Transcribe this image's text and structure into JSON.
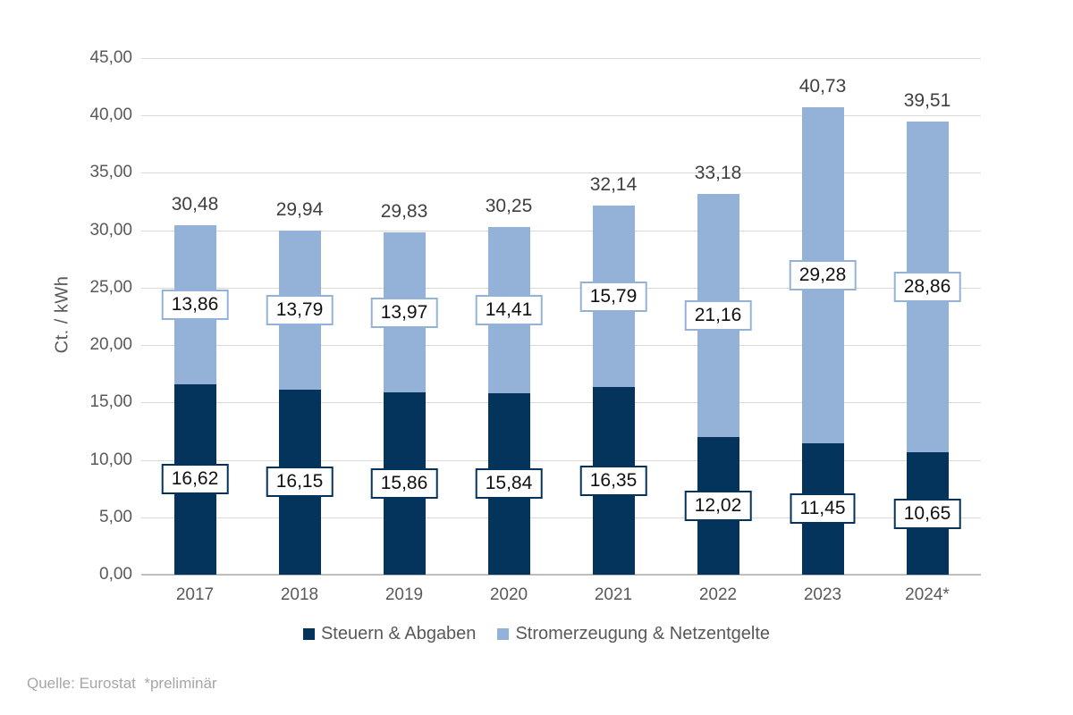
{
  "chart_data": {
    "type": "bar",
    "stacked": true,
    "title": "",
    "ylabel": "Ct. / kWh",
    "ylim": [
      0,
      45
    ],
    "yticks": [
      0,
      5,
      10,
      15,
      20,
      25,
      30,
      35,
      40,
      45
    ],
    "ytick_labels": [
      "0,00",
      "5,00",
      "10,00",
      "15,00",
      "20,00",
      "25,00",
      "30,00",
      "35,00",
      "40,00",
      "45,00"
    ],
    "grid": true,
    "legend_position": "bottom",
    "categories": [
      "2017",
      "2018",
      "2019",
      "2020",
      "2021",
      "2022",
      "2023",
      "2024*"
    ],
    "series": [
      {
        "name": "Steuern & Abgaben",
        "color": "#04335B",
        "values": [
          16.62,
          16.15,
          15.86,
          15.84,
          16.35,
          12.02,
          11.45,
          10.65
        ],
        "labels": [
          "16,62",
          "16,15",
          "15,86",
          "15,84",
          "16,35",
          "12,02",
          "11,45",
          "10,65"
        ]
      },
      {
        "name": "Stromerzeugung & Netzentgelte",
        "color": "#94B2D8",
        "values": [
          13.86,
          13.79,
          13.97,
          14.41,
          15.79,
          21.16,
          29.28,
          28.86
        ],
        "labels": [
          "13,86",
          "13,79",
          "13,97",
          "14,41",
          "15,79",
          "21,16",
          "29,28",
          "28,86"
        ]
      }
    ],
    "totals": [
      30.48,
      29.94,
      29.83,
      30.25,
      32.14,
      33.18,
      40.73,
      39.51
    ],
    "total_labels": [
      "30,48",
      "29,94",
      "29,83",
      "30,25",
      "32,14",
      "33,18",
      "40,73",
      "39,51"
    ]
  },
  "footer": {
    "source_note": "Quelle: Eurostat  *preliminär"
  }
}
